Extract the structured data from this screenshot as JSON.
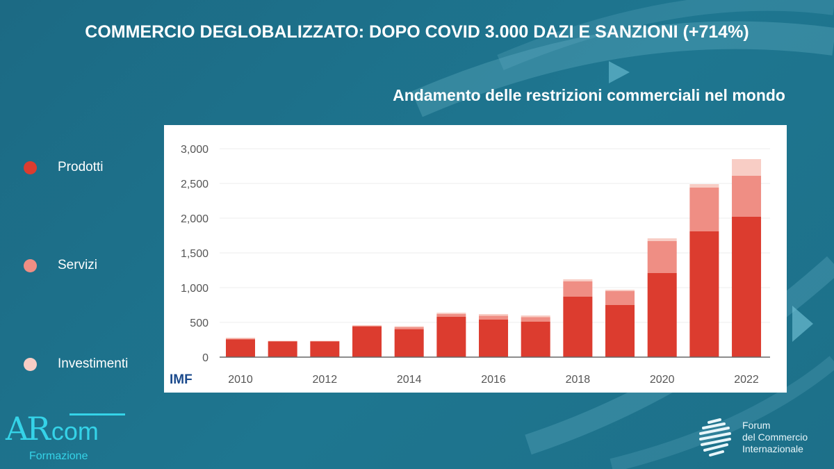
{
  "title": "COMMERCIO DEGLOBALIZZATO: DOPO COVID 3.000 DAZI E SANZIONI (+714%)",
  "legend": [
    {
      "label": "Prodotti",
      "color": "#dc3c2f"
    },
    {
      "label": "Servizi",
      "color": "#ef8e84"
    },
    {
      "label": "Investimenti",
      "color": "#f8cdc5"
    }
  ],
  "source_logo": "IMF",
  "branding": {
    "left_logo": {
      "main": "AR",
      "accent": "com",
      "sub": "Formazione"
    },
    "right_logo": {
      "lines": [
        "Forum",
        "del Commercio",
        "Internazionale"
      ]
    }
  },
  "chart_data": {
    "type": "bar",
    "stacked": true,
    "title": "Andamento delle restrizioni commerciali nel mondo",
    "xlabel": "",
    "ylabel": "",
    "categories": [
      "2010",
      "2011",
      "2012",
      "2013",
      "2014",
      "2015",
      "2016",
      "2017",
      "2018",
      "2019",
      "2020",
      "2021",
      "2022"
    ],
    "x_tick_labels": [
      "2010",
      "2012",
      "2014",
      "2016",
      "2018",
      "2020",
      "2022"
    ],
    "y_tick_labels": [
      "0",
      "500",
      "1,000",
      "1,500",
      "2,000",
      "2,500",
      "3,000"
    ],
    "ylim": [
      0,
      3000
    ],
    "grid": true,
    "legend_placement": "left, outside",
    "series": [
      {
        "name": "Prodotti",
        "color": "#dc3c2f",
        "values": [
          255,
          225,
          225,
          440,
          400,
          580,
          540,
          510,
          870,
          750,
          1210,
          1810,
          2020
        ]
      },
      {
        "name": "Servizi",
        "color": "#ef8e84",
        "values": [
          10,
          5,
          5,
          10,
          30,
          40,
          55,
          65,
          220,
          200,
          460,
          630,
          590
        ]
      },
      {
        "name": "Investimenti",
        "color": "#f8cdc5",
        "values": [
          15,
          5,
          5,
          10,
          15,
          20,
          25,
          25,
          30,
          20,
          40,
          50,
          240
        ]
      }
    ]
  }
}
